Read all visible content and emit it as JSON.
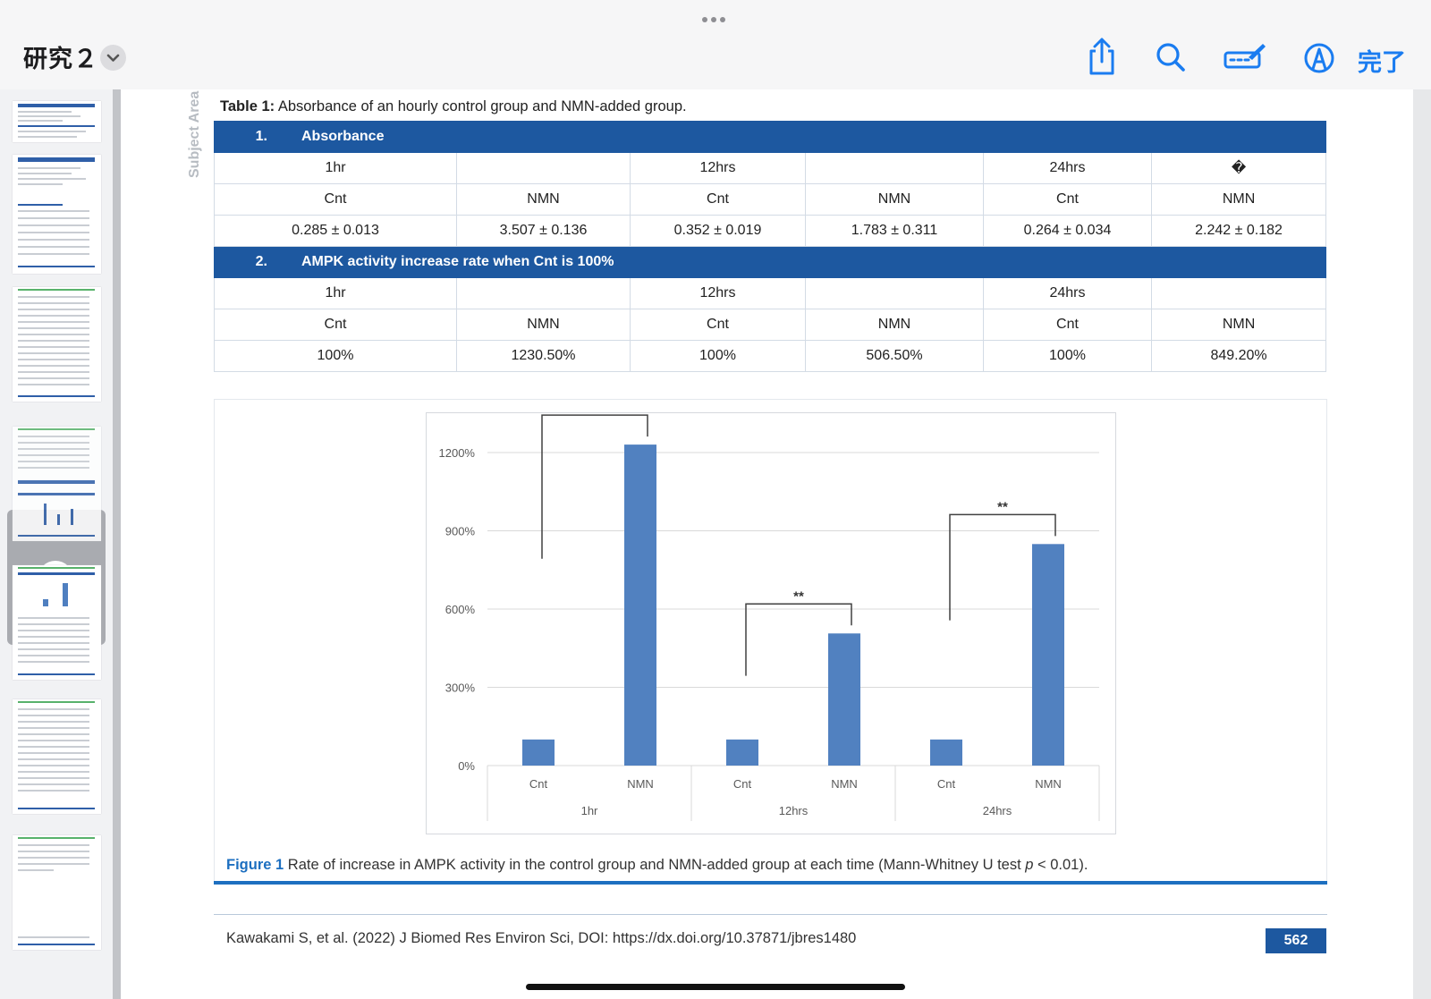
{
  "app": {
    "doc_title": "研究２",
    "done_label": "完了",
    "icons": [
      "share-icon",
      "search-icon",
      "markup-icon",
      "pencil-tip-icon",
      "chevron-down-icon",
      "more-icon"
    ],
    "accent_color": "#1a7cf0"
  },
  "page": {
    "subject_area": "Subject Area",
    "table_caption_label": "Table 1:",
    "table_caption_text": " Absorbance of an hourly control group and NMN-added group.",
    "section1_num": "1.",
    "section1_title": "Absorbance",
    "section2_num": "2.",
    "section2_title": "AMPK activity increase rate when Cnt is 100%",
    "time_headers": [
      "1hr",
      "",
      "12hrs",
      "",
      "24hrs",
      "�"
    ],
    "time_headers2": [
      "1hr",
      "",
      "12hrs",
      "",
      "24hrs",
      ""
    ],
    "group_headers": [
      "Cnt",
      "NMN",
      "Cnt",
      "NMN",
      "Cnt",
      "NMN"
    ],
    "absorbance_values": [
      "0.285 ± 0.013",
      "3.507 ± 0.136",
      "0.352 ± 0.019",
      "1.783 ± 0.311",
      "0.264 ± 0.034",
      "2.242 ± 0.182"
    ],
    "ampk_values": [
      "100%",
      "1230.50%",
      "100%",
      "506.50%",
      "100%",
      "849.20%"
    ],
    "figure_caption_label": "Figure 1",
    "figure_caption_text": " Rate of increase in AMPK activity in the control group and NMN-added group at each time (Mann-Whitney U test ",
    "figure_caption_p": "p",
    "figure_caption_end": " < 0.01).",
    "citation": "Kawakami S, et al. (2022) J Biomed Res Environ Sci, DOI: https://dx.doi.org/10.37871/jbres1480",
    "page_number": "562",
    "brand_color": "#1d58a0"
  },
  "chart_data": {
    "type": "bar",
    "groups": [
      "1hr",
      "12hrs",
      "24hrs"
    ],
    "categories": [
      "Cnt",
      "NMN",
      "Cnt",
      "NMN",
      "Cnt",
      "NMN"
    ],
    "values": [
      100,
      1230.5,
      100,
      506.5,
      100,
      849.2
    ],
    "y_ticks": [
      "0%",
      "300%",
      "600%",
      "900%",
      "1200%"
    ],
    "ylim": [
      0,
      1300
    ],
    "significance": [
      {
        "group": "1hr",
        "label": ""
      },
      {
        "group": "12hrs",
        "label": "**"
      },
      {
        "group": "24hrs",
        "label": "**"
      }
    ],
    "bar_color": "#5181c0",
    "grid": true
  }
}
